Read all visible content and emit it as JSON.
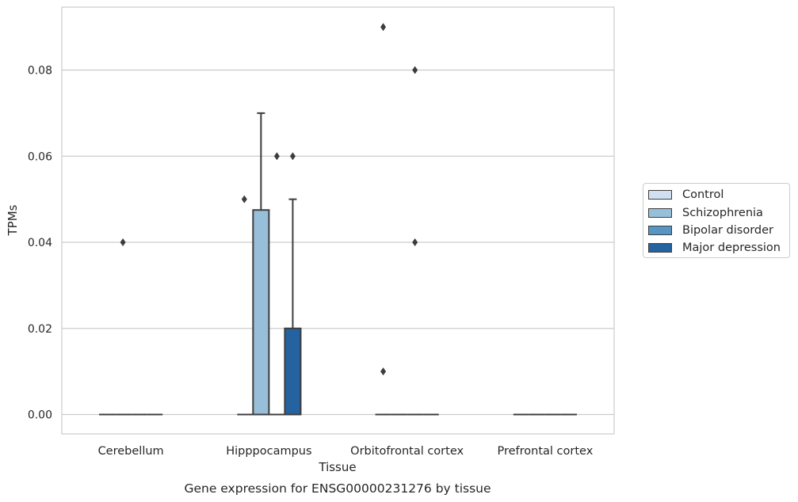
{
  "chart_data": {
    "type": "box",
    "title": "Gene expression for ENSG00000231276 by tissue",
    "xlabel": "Tissue",
    "ylabel": "TPMs",
    "categories": [
      "Cerebellum",
      "Hipppocampus",
      "Orbitofrontal cortex",
      "Prefrontal cortex"
    ],
    "ylim": [
      -0.0045,
      0.0945
    ],
    "yticks": [
      "0.00",
      "0.02",
      "0.04",
      "0.06",
      "0.08"
    ],
    "grid": true,
    "legend_position": "right",
    "series": [
      {
        "name": "Control",
        "color": "#d0e0f0",
        "boxes": [
          {
            "category": "Cerebellum",
            "q1": 0,
            "median": 0,
            "q3": 0,
            "whisker_low": 0,
            "whisker_high": 0,
            "outliers": []
          },
          {
            "category": "Hipppocampus",
            "q1": 0,
            "median": 0,
            "q3": 0,
            "whisker_low": 0,
            "whisker_high": 0,
            "outliers": []
          },
          {
            "category": "Orbitofrontal cortex",
            "q1": 0,
            "median": 0,
            "q3": 0,
            "whisker_low": 0,
            "whisker_high": 0,
            "outliers": [
              0.09,
              0.01
            ]
          },
          {
            "category": "Prefrontal cortex",
            "q1": 0,
            "median": 0,
            "q3": 0,
            "whisker_low": 0,
            "whisker_high": 0,
            "outliers": []
          }
        ]
      },
      {
        "name": "Schizophrenia",
        "color": "#98bfd9",
        "boxes": [
          {
            "category": "Cerebellum",
            "q1": 0,
            "median": 0,
            "q3": 0,
            "whisker_low": 0,
            "whisker_high": 0,
            "outliers": [
              0.04
            ]
          },
          {
            "category": "Hipppocampus",
            "q1": 0,
            "median": 0,
            "q3": 0.0475,
            "whisker_low": 0,
            "whisker_high": 0.07,
            "outliers": []
          },
          {
            "category": "Orbitofrontal cortex",
            "q1": 0,
            "median": 0,
            "q3": 0,
            "whisker_low": 0,
            "whisker_high": 0,
            "outliers": []
          },
          {
            "category": "Prefrontal cortex",
            "q1": 0,
            "median": 0,
            "q3": 0,
            "whisker_low": 0,
            "whisker_high": 0,
            "outliers": []
          }
        ]
      },
      {
        "name": "Bipolar disorder",
        "color": "#5796c3",
        "boxes": [
          {
            "category": "Cerebellum",
            "q1": 0,
            "median": 0,
            "q3": 0,
            "whisker_low": 0,
            "whisker_high": 0,
            "outliers": []
          },
          {
            "category": "Hipppocampus",
            "q1": 0,
            "median": 0,
            "q3": 0,
            "whisker_low": 0,
            "whisker_high": 0,
            "outliers": [
              0.06
            ]
          },
          {
            "category": "Orbitofrontal cortex",
            "q1": 0,
            "median": 0,
            "q3": 0,
            "whisker_low": 0,
            "whisker_high": 0,
            "outliers": [
              0.08,
              0.04
            ]
          },
          {
            "category": "Prefrontal cortex",
            "q1": 0,
            "median": 0,
            "q3": 0,
            "whisker_low": 0,
            "whisker_high": 0,
            "outliers": []
          }
        ]
      },
      {
        "name": "Major depression",
        "color": "#2563a0",
        "boxes": [
          {
            "category": "Cerebellum",
            "q1": 0,
            "median": 0,
            "q3": 0,
            "whisker_low": 0,
            "whisker_high": 0,
            "outliers": []
          },
          {
            "category": "Hipppocampus",
            "q1": 0,
            "median": 0,
            "q3": 0.02,
            "whisker_low": 0,
            "whisker_high": 0.05,
            "outliers": [
              0.06
            ]
          },
          {
            "category": "Orbitofrontal cortex",
            "q1": 0,
            "median": 0,
            "q3": 0,
            "whisker_low": 0,
            "whisker_high": 0,
            "outliers": []
          },
          {
            "category": "Prefrontal cortex",
            "q1": 0,
            "median": 0,
            "q3": 0,
            "whisker_low": 0,
            "whisker_high": 0,
            "outliers": []
          }
        ]
      }
    ],
    "extra_outliers": [
      {
        "category": "Hipppocampus",
        "value": 0.05
      }
    ]
  }
}
